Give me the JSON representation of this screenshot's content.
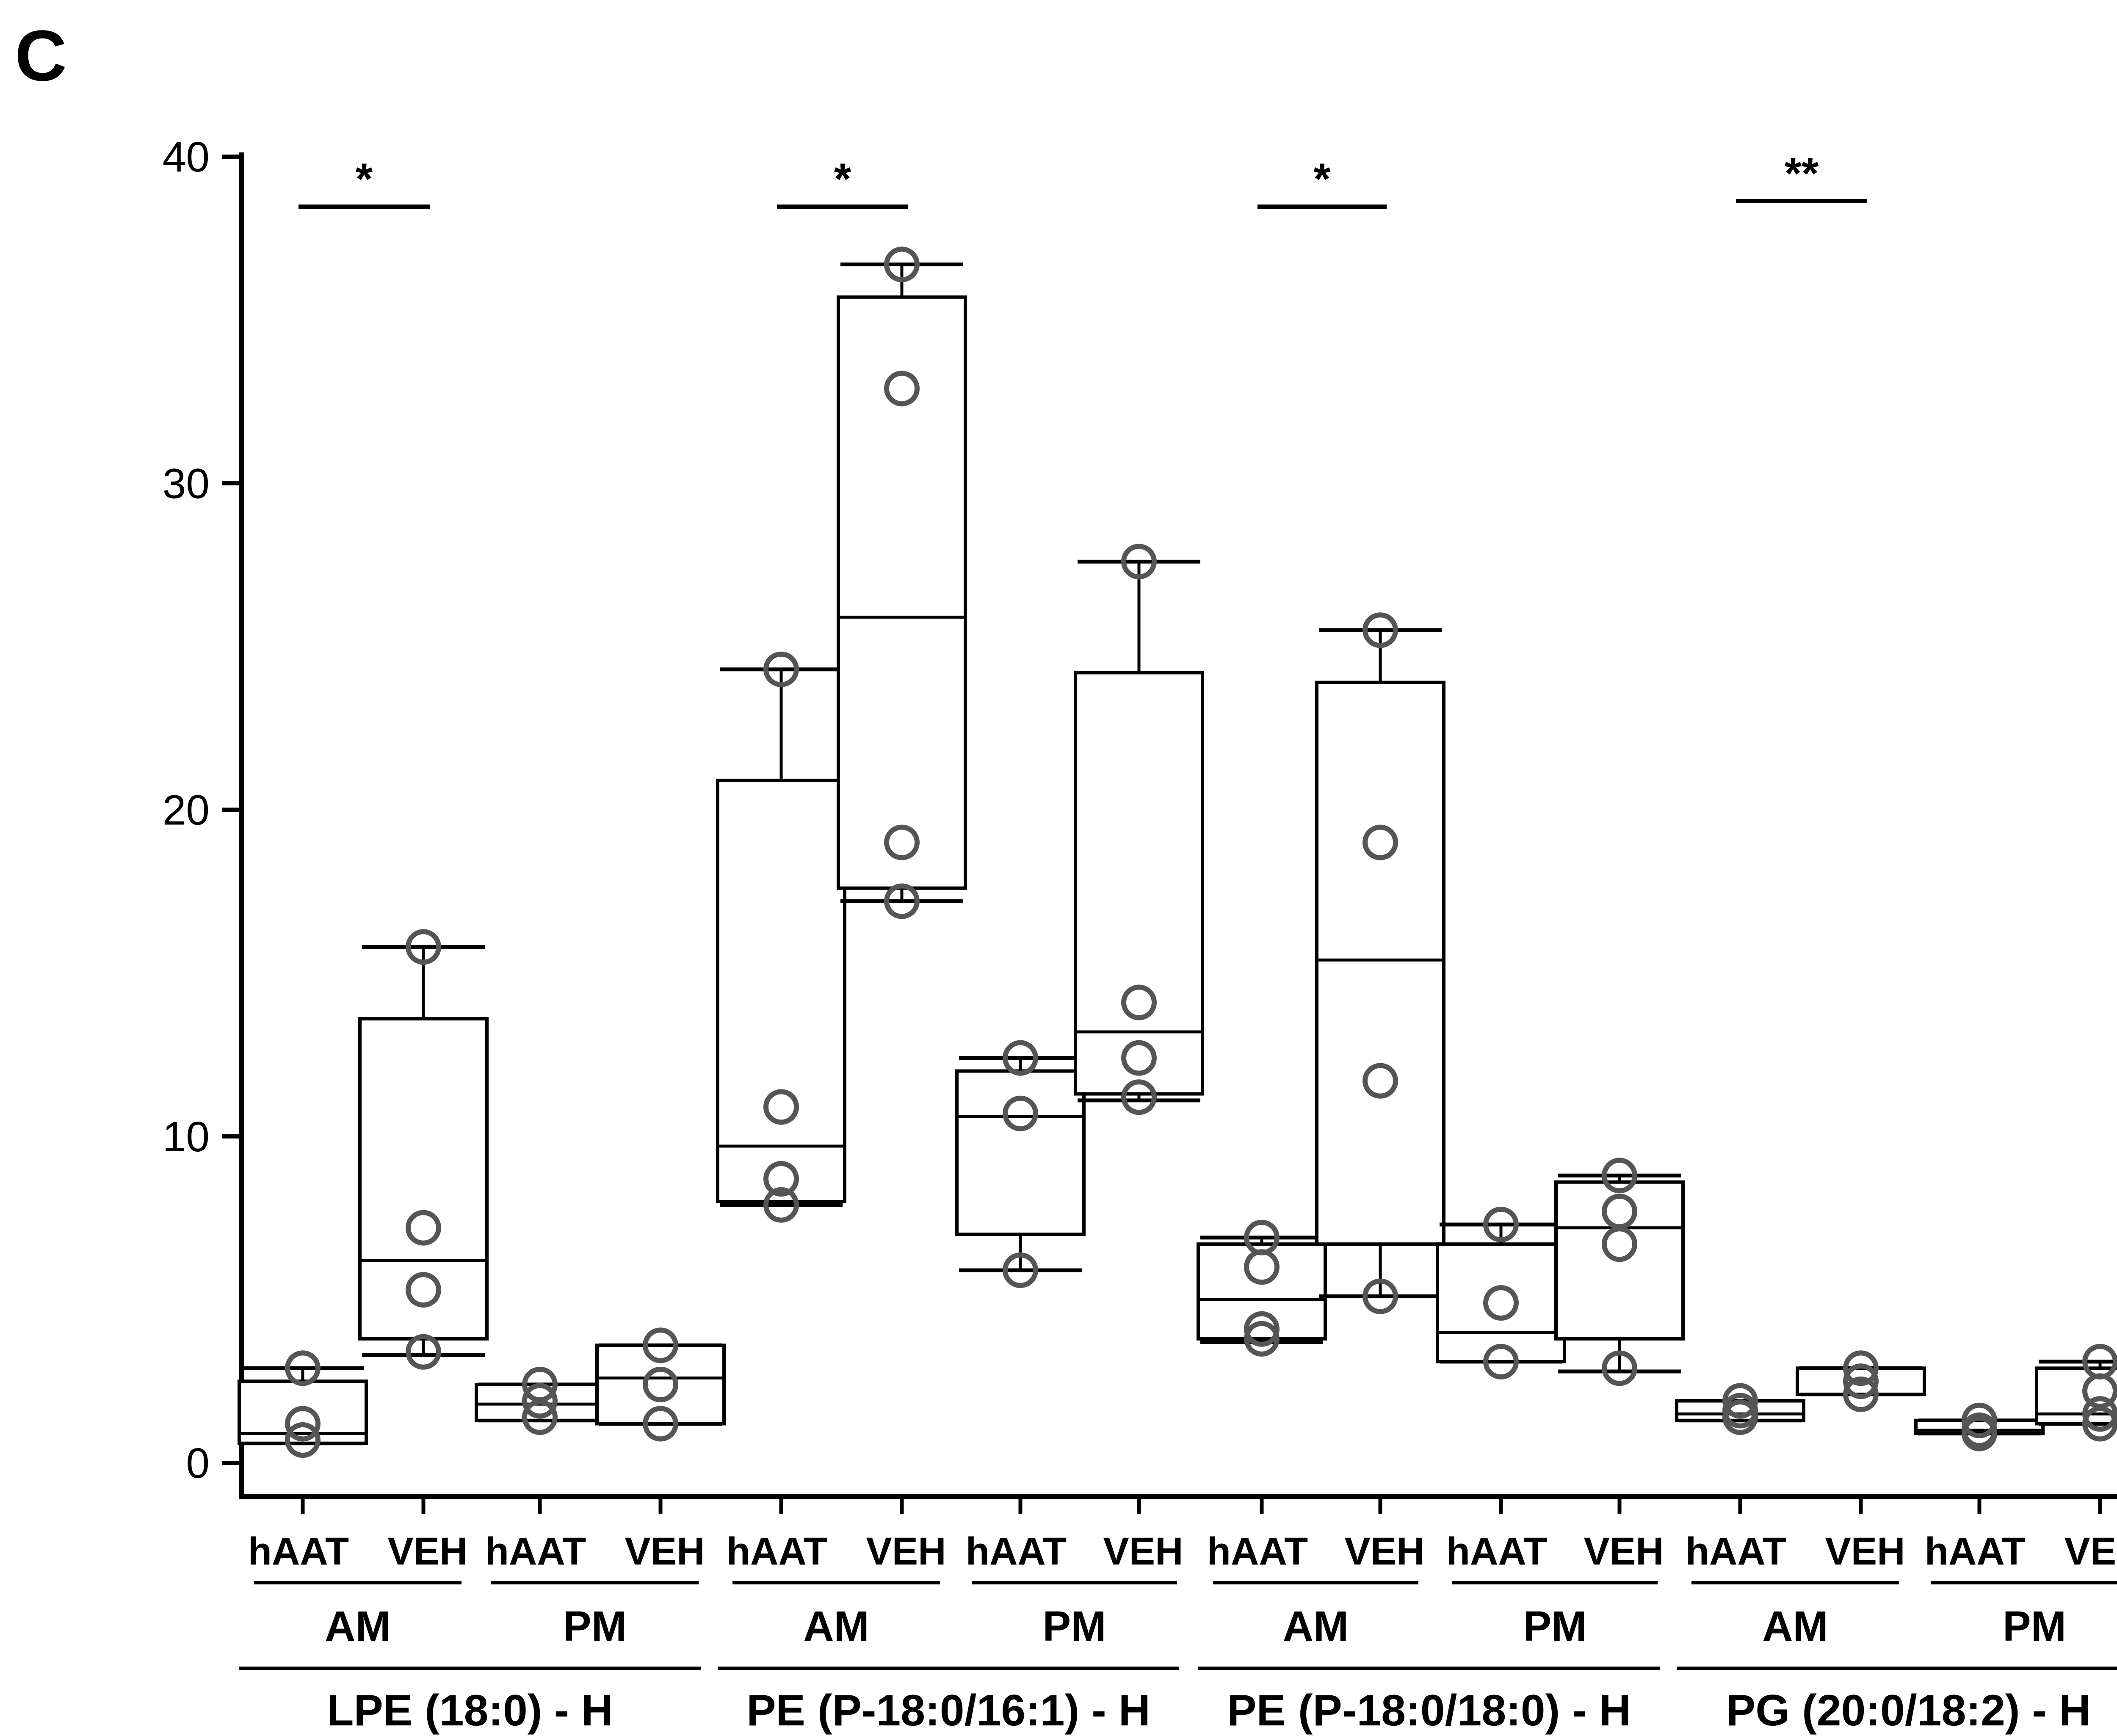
{
  "panel_label": "C",
  "chart_data": {
    "type": "box",
    "ylim": [
      0,
      40
    ],
    "y_ticks": [
      0,
      10,
      20,
      30,
      40
    ],
    "groups": [
      {
        "lipid": "LPE (18:0) - H",
        "subgroups": [
          {
            "label": "AM",
            "boxes": [
              {
                "treatment": "hAAT",
                "min": 0.6,
                "q1": 0.6,
                "median": 0.9,
                "q3": 2.5,
                "max": 2.9,
                "points": [
                  2.9,
                  1.2,
                  0.7
                ]
              },
              {
                "treatment": "VEH",
                "min": 3.3,
                "q1": 3.8,
                "median": 6.2,
                "q3": 13.6,
                "max": 15.8,
                "points": [
                  15.8,
                  7.2,
                  5.3,
                  3.4
                ]
              }
            ]
          },
          {
            "label": "PM",
            "boxes": [
              {
                "treatment": "hAAT",
                "min": 1.3,
                "q1": 1.3,
                "median": 1.8,
                "q3": 2.4,
                "max": 2.4,
                "points": [
                  2.4,
                  1.9,
                  1.4
                ]
              },
              {
                "treatment": "VEH",
                "min": 1.2,
                "q1": 1.2,
                "median": 2.6,
                "q3": 3.6,
                "max": 3.6,
                "points": [
                  3.6,
                  2.4,
                  1.2
                ]
              }
            ]
          }
        ],
        "significance": {
          "subgroup": 0,
          "label": "*"
        }
      },
      {
        "lipid": "PE (P-18:0/16:1) - H",
        "subgroups": [
          {
            "label": "AM",
            "boxes": [
              {
                "treatment": "hAAT",
                "min": 7.9,
                "q1": 8.0,
                "median": 9.7,
                "q3": 20.9,
                "max": 24.3,
                "points": [
                  24.3,
                  10.9,
                  8.7,
                  7.9
                ]
              },
              {
                "treatment": "VEH",
                "min": 17.2,
                "q1": 17.6,
                "median": 25.9,
                "q3": 35.7,
                "max": 36.7,
                "points": [
                  36.7,
                  32.9,
                  19.0,
                  17.2
                ]
              }
            ]
          },
          {
            "label": "PM",
            "boxes": [
              {
                "treatment": "hAAT",
                "min": 5.9,
                "q1": 7.0,
                "median": 10.6,
                "q3": 12.0,
                "max": 12.4,
                "points": [
                  12.4,
                  10.7,
                  5.9
                ]
              },
              {
                "treatment": "VEH",
                "min": 11.1,
                "q1": 11.3,
                "median": 13.2,
                "q3": 24.2,
                "max": 27.6,
                "points": [
                  27.6,
                  14.1,
                  12.4,
                  11.2
                ]
              }
            ]
          }
        ],
        "significance": {
          "subgroup": 0,
          "label": "*"
        }
      },
      {
        "lipid": "PE (P-18:0/18:0) - H",
        "subgroups": [
          {
            "label": "AM",
            "boxes": [
              {
                "treatment": "hAAT",
                "min": 3.7,
                "q1": 3.8,
                "median": 5.0,
                "q3": 6.7,
                "max": 6.9,
                "points": [
                  6.9,
                  6.0,
                  4.1,
                  3.8
                ]
              },
              {
                "treatment": "VEH",
                "min": 5.1,
                "q1": 6.7,
                "median": 15.4,
                "q3": 23.9,
                "max": 25.5,
                "points": [
                  25.5,
                  19.0,
                  11.7,
                  5.1
                ]
              }
            ]
          },
          {
            "label": "PM",
            "boxes": [
              {
                "treatment": "hAAT",
                "min": 3.1,
                "q1": 3.1,
                "median": 4.0,
                "q3": 6.7,
                "max": 7.3,
                "points": [
                  7.3,
                  4.9,
                  3.1
                ]
              },
              {
                "treatment": "VEH",
                "min": 2.8,
                "q1": 3.8,
                "median": 7.2,
                "q3": 8.6,
                "max": 8.8,
                "points": [
                  8.8,
                  7.7,
                  6.7,
                  2.9
                ]
              }
            ]
          }
        ],
        "significance": {
          "subgroup": 0,
          "label": "*"
        }
      },
      {
        "lipid": "PG (20:0/18:2) - H",
        "subgroups": [
          {
            "label": "AM",
            "boxes": [
              {
                "treatment": "hAAT",
                "min": 1.3,
                "q1": 1.3,
                "median": 1.5,
                "q3": 1.9,
                "max": 1.9,
                "points": [
                  1.9,
                  1.6,
                  1.4
                ]
              },
              {
                "treatment": "VEH",
                "min": 2.1,
                "q1": 2.1,
                "median": 2.9,
                "q3": 2.9,
                "max": 2.9,
                "points": [
                  2.9,
                  2.5,
                  2.1
                ]
              }
            ]
          },
          {
            "label": "PM",
            "boxes": [
              {
                "treatment": "hAAT",
                "min": 0.9,
                "q1": 0.9,
                "median": 1.0,
                "q3": 1.3,
                "max": 1.3,
                "points": [
                  1.3,
                  1.0,
                  0.9
                ]
              },
              {
                "treatment": "VEH",
                "min": 1.2,
                "q1": 1.2,
                "median": 1.5,
                "q3": 2.9,
                "max": 3.1,
                "points": [
                  3.1,
                  2.2,
                  1.5,
                  1.2
                ]
              }
            ]
          }
        ],
        "significance": {
          "subgroup": 0,
          "label": "**"
        }
      }
    ]
  }
}
